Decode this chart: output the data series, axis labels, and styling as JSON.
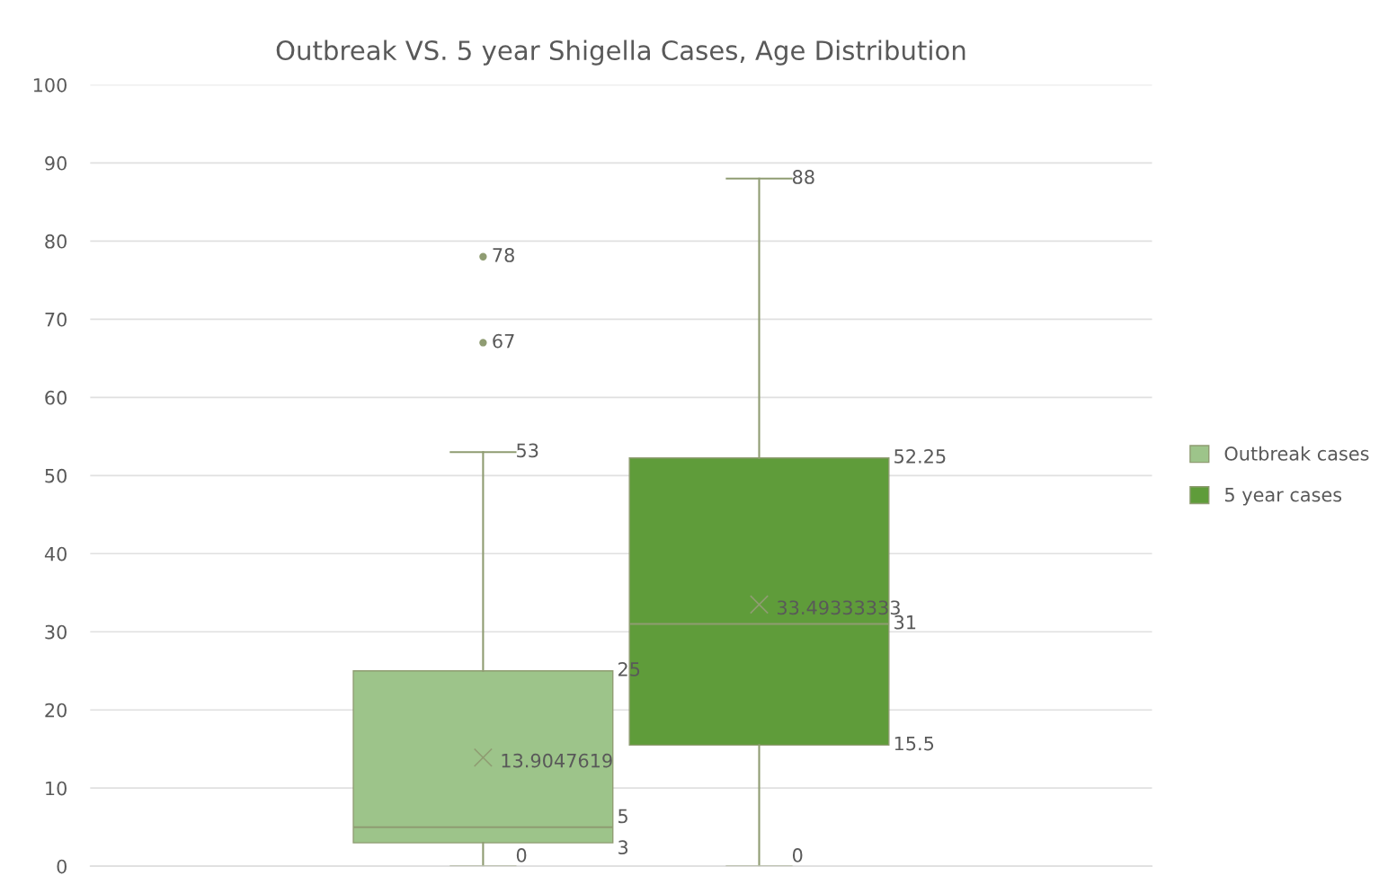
{
  "chart_data": {
    "type": "box",
    "title": "Outbreak VS. 5 year Shigella Cases, Age Distribution",
    "categories": [
      null
    ],
    "series": [
      {
        "name": "Outbreak cases",
        "color": "#9dc48a",
        "boxes": [
          {
            "low": 0,
            "q1": 3,
            "median": 5,
            "q3": 25,
            "high": 53,
            "mean": 13.9047619,
            "outliers": [
              67,
              78
            ]
          }
        ]
      },
      {
        "name": "5 year cases",
        "color": "#5f9c3a",
        "boxes": [
          {
            "low": 0,
            "q1": 15.5,
            "median": 31,
            "q3": 52.25,
            "high": 88,
            "mean": 33.49333333
          }
        ]
      }
    ],
    "annotations": [
      "0",
      "3",
      "5",
      "25",
      "53",
      "13.9047619",
      "67",
      "78",
      "0",
      "15.5",
      "31",
      "52.25",
      "88",
      "33.49333333"
    ],
    "ylim": [
      0,
      100
    ],
    "yticks": [
      0,
      10,
      20,
      30,
      40,
      50,
      60,
      70,
      80,
      90,
      100
    ],
    "grid": "y",
    "legend": "right",
    "marker": "cross",
    "tick_labels": "y"
  }
}
